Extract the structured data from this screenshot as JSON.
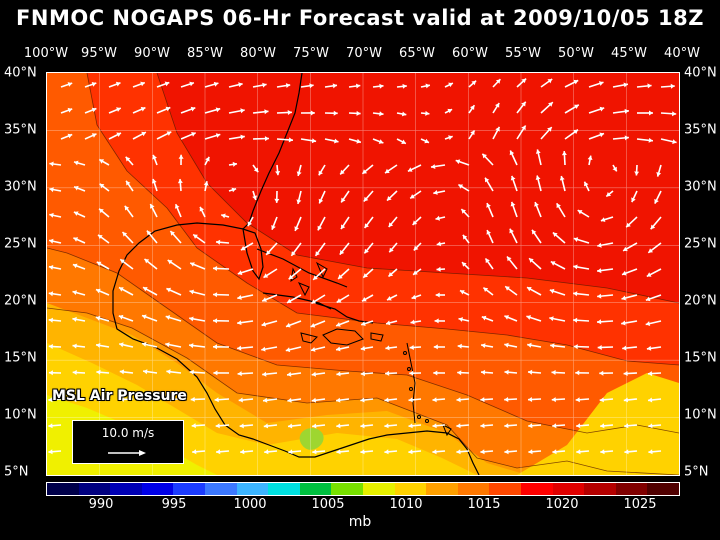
{
  "title": "FNMOC NOGAPS 06-Hr Forecast valid at 2009/10/05 18Z",
  "longitude_labels": [
    "100°W",
    "95°W",
    "90°W",
    "85°W",
    "80°W",
    "75°W",
    "70°W",
    "65°W",
    "60°W",
    "55°W",
    "50°W",
    "45°W",
    "40°W"
  ],
  "latitude_labels": [
    "40°N",
    "35°N",
    "30°N",
    "25°N",
    "20°N",
    "15°N",
    "10°N",
    "5°N"
  ],
  "field_label": "MSL Air Pressure",
  "vector_scale_label": "10.0 m/s",
  "colorbar": {
    "labels": [
      "990",
      "995",
      "1000",
      "1005",
      "1010",
      "1015",
      "1020",
      "1025"
    ],
    "units": "mb",
    "colors": [
      "#00004a",
      "#000080",
      "#0000b4",
      "#0000e6",
      "#1c3cff",
      "#3c78ff",
      "#3cb4ff",
      "#00e0e0",
      "#00c040",
      "#78e000",
      "#e6f000",
      "#ffd200",
      "#ffa000",
      "#ff7800",
      "#ff4800",
      "#ff0000",
      "#e00000",
      "#b40000",
      "#800000",
      "#500000"
    ]
  },
  "pressure_colors": {
    "p1005": "#9ed630",
    "p1008": "#f0f000",
    "p1010": "#ffd200",
    "p1011": "#ffb400",
    "p1012": "#ff9600",
    "p1013": "#ff7800",
    "p1014": "#ff5a00",
    "p1015": "#ff3200",
    "p1016": "#f01400"
  }
}
